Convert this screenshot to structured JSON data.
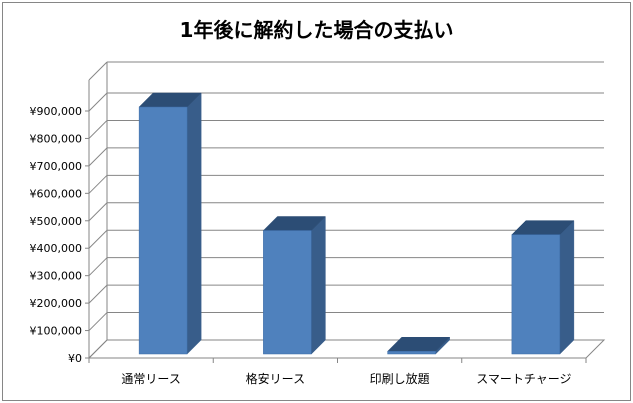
{
  "chart_data": {
    "type": "bar",
    "title": "1年後に解約した場合の支払い",
    "categories": [
      "通常リース",
      "格安リース",
      "印刷し放題",
      "スマートチャージ"
    ],
    "values": [
      900000,
      450000,
      10000,
      435000
    ],
    "ylim": [
      0,
      900000
    ],
    "ytick_step": 100000,
    "ytick_labels": [
      "¥0",
      "¥100,000",
      "¥200,000",
      "¥300,000",
      "¥400,000",
      "¥500,000",
      "¥600,000",
      "¥700,000",
      "¥800,000",
      "¥900,000"
    ],
    "grid": true,
    "legend": "none",
    "style": "3d-clustered-column"
  },
  "colors": {
    "bar_front": "#4f81bd",
    "bar_side": "#385d8a",
    "bar_top": "#2c4d75",
    "grid": "#868686",
    "wall": "#ffffff"
  }
}
